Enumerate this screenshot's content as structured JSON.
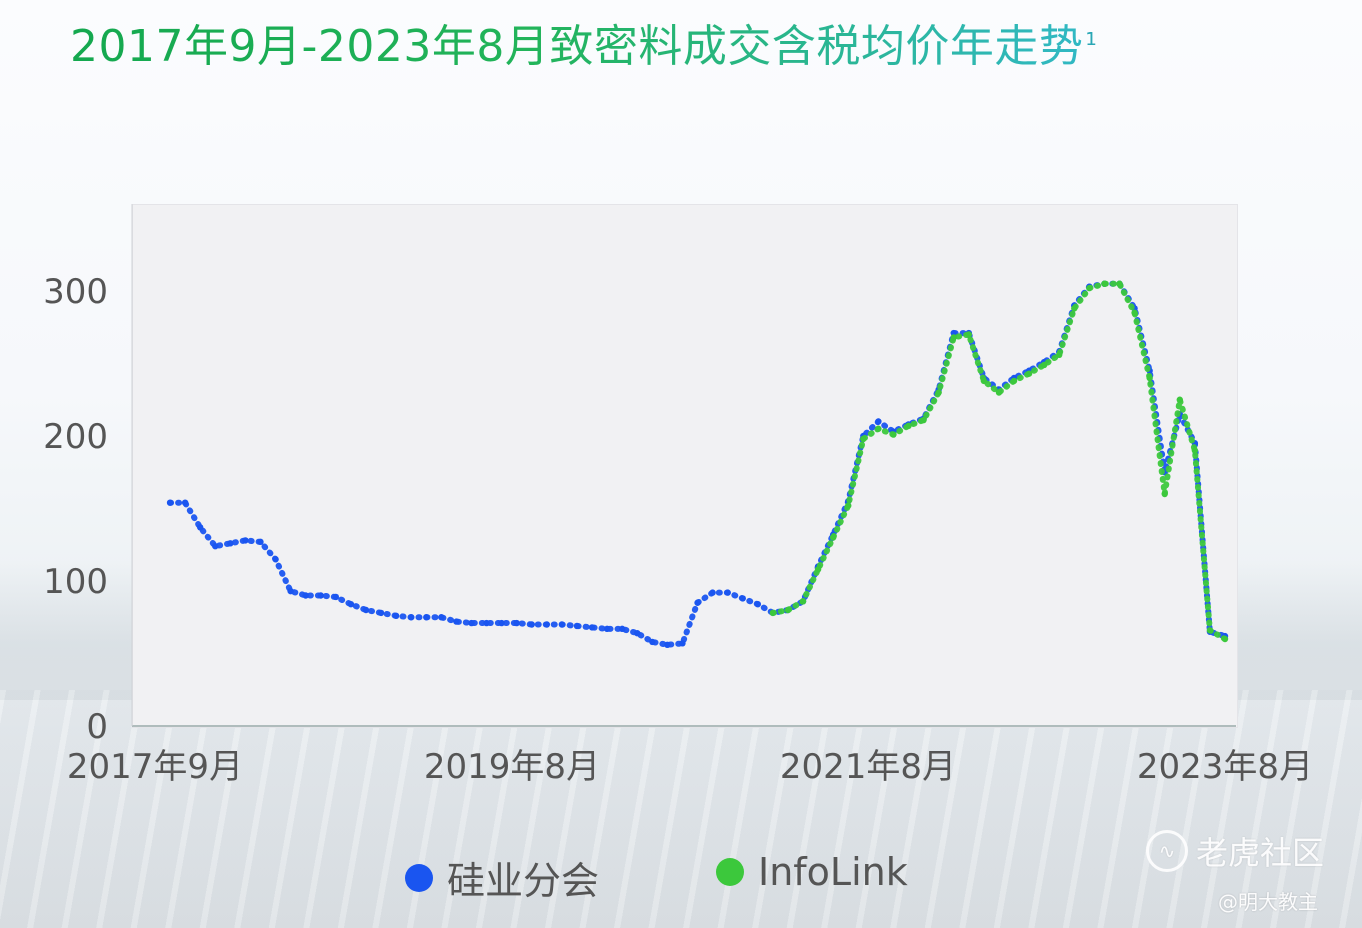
{
  "title": "2017年9月-2023年8月致密料成交含税均价年走势",
  "title_note": "1",
  "chart_data": {
    "type": "scatter",
    "x_labels": [
      "2017年9月",
      "2019年8月",
      "2021年8月",
      "2023年8月"
    ],
    "y_ticks": [
      0,
      100,
      200,
      300
    ],
    "ylim": [
      0,
      360
    ],
    "xlim": [
      "2017-09",
      "2023-08"
    ],
    "grid": false,
    "legend_placement": "bottom",
    "series": [
      {
        "name": "硅业分会",
        "color": "#1a55f0",
        "points": [
          [
            "2017-10",
            154
          ],
          [
            "2017-11",
            154
          ],
          [
            "2017-12",
            137
          ],
          [
            "2018-01",
            124
          ],
          [
            "2018-02",
            126
          ],
          [
            "2018-03",
            128
          ],
          [
            "2018-04",
            127
          ],
          [
            "2018-05",
            115
          ],
          [
            "2018-06",
            93
          ],
          [
            "2018-07",
            90
          ],
          [
            "2018-08",
            90
          ],
          [
            "2018-09",
            89
          ],
          [
            "2018-10",
            84
          ],
          [
            "2018-11",
            80
          ],
          [
            "2018-12",
            78
          ],
          [
            "2019-01",
            76
          ],
          [
            "2019-02",
            75
          ],
          [
            "2019-03",
            75
          ],
          [
            "2019-04",
            75
          ],
          [
            "2019-05",
            72
          ],
          [
            "2019-06",
            71
          ],
          [
            "2019-07",
            71
          ],
          [
            "2019-08",
            71
          ],
          [
            "2019-09",
            71
          ],
          [
            "2019-10",
            70
          ],
          [
            "2019-11",
            70
          ],
          [
            "2019-12",
            70
          ],
          [
            "2020-01",
            69
          ],
          [
            "2020-02",
            68
          ],
          [
            "2020-03",
            67
          ],
          [
            "2020-04",
            67
          ],
          [
            "2020-05",
            64
          ],
          [
            "2020-06",
            58
          ],
          [
            "2020-07",
            56
          ],
          [
            "2020-08",
            57
          ],
          [
            "2020-09",
            85
          ],
          [
            "2020-10",
            92
          ],
          [
            "2020-11",
            92
          ],
          [
            "2020-12",
            88
          ],
          [
            "2021-01",
            84
          ],
          [
            "2021-02",
            78
          ],
          [
            "2021-03",
            80
          ],
          [
            "2021-04",
            86
          ],
          [
            "2021-05",
            110
          ],
          [
            "2021-06",
            132
          ],
          [
            "2021-07",
            155
          ],
          [
            "2021-08",
            200
          ],
          [
            "2021-09",
            210
          ],
          [
            "2021-10",
            203
          ],
          [
            "2021-11",
            208
          ],
          [
            "2021-12",
            212
          ],
          [
            "2022-01",
            232
          ],
          [
            "2022-02",
            271
          ],
          [
            "2022-03",
            271
          ],
          [
            "2022-04",
            240
          ],
          [
            "2022-05",
            232
          ],
          [
            "2022-06",
            240
          ],
          [
            "2022-07",
            245
          ],
          [
            "2022-08",
            251
          ],
          [
            "2022-09",
            258
          ],
          [
            "2022-10",
            290
          ],
          [
            "2022-11",
            303
          ],
          [
            "2022-12",
            305
          ],
          [
            "2023-01",
            305
          ],
          [
            "2023-02",
            288
          ],
          [
            "2023-03",
            245
          ],
          [
            "2023-04",
            175
          ],
          [
            "2023-05",
            215
          ],
          [
            "2023-06",
            195
          ],
          [
            "2023-07",
            65
          ],
          [
            "2023-08",
            62
          ]
        ]
      },
      {
        "name": "InfoLink",
        "color": "#3cc83c",
        "points": [
          [
            "2021-02",
            78
          ],
          [
            "2021-03",
            80
          ],
          [
            "2021-04",
            86
          ],
          [
            "2021-05",
            108
          ],
          [
            "2021-06",
            130
          ],
          [
            "2021-07",
            152
          ],
          [
            "2021-08",
            198
          ],
          [
            "2021-09",
            205
          ],
          [
            "2021-10",
            201
          ],
          [
            "2021-11",
            207
          ],
          [
            "2021-12",
            211
          ],
          [
            "2022-01",
            230
          ],
          [
            "2022-02",
            268
          ],
          [
            "2022-03",
            270
          ],
          [
            "2022-04",
            238
          ],
          [
            "2022-05",
            230
          ],
          [
            "2022-06",
            238
          ],
          [
            "2022-07",
            243
          ],
          [
            "2022-08",
            249
          ],
          [
            "2022-09",
            256
          ],
          [
            "2022-10",
            288
          ],
          [
            "2022-11",
            302
          ],
          [
            "2022-12",
            305
          ],
          [
            "2023-01",
            305
          ],
          [
            "2023-02",
            285
          ],
          [
            "2023-03",
            240
          ],
          [
            "2023-04",
            160
          ],
          [
            "2023-05",
            225
          ],
          [
            "2023-06",
            190
          ],
          [
            "2023-07",
            66
          ],
          [
            "2023-08",
            60
          ]
        ]
      }
    ]
  },
  "legend": [
    {
      "label": "硅业分会",
      "color": "#1a55f0"
    },
    {
      "label": "InfoLink",
      "color": "#3cc83c"
    }
  ],
  "watermark": {
    "brand": "老虎社区",
    "author": "@明大教主",
    "logo_glyph": "∿"
  }
}
